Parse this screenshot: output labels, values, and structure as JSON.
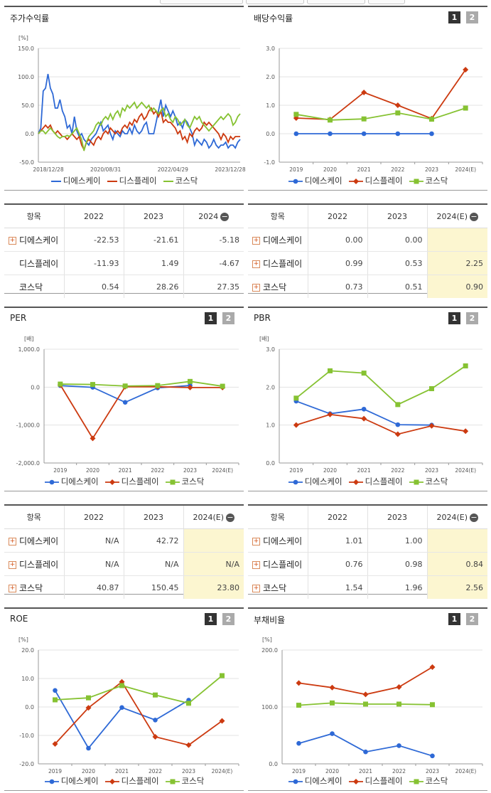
{
  "colors": {
    "dsk": "#2e69d6",
    "display": "#cc3a10",
    "kosdaq": "#86c232",
    "grid": "#e3e3e3",
    "axis": "#999999"
  },
  "series_names": [
    "디에스케이",
    "디스플레이",
    "코스닥"
  ],
  "toggle": {
    "one": "1",
    "two": "2"
  },
  "stock_return": {
    "title": "주가수익률",
    "unit": "[%]",
    "chart_data": {
      "type": "line",
      "ylim": [
        -50,
        150
      ],
      "yticks": [
        "150.0",
        "100.0",
        "50.0",
        "0.0",
        "-50.0"
      ],
      "xticks": [
        "2018/12/28",
        "2020/08/31",
        "2022/04/29",
        "2023/12/28"
      ],
      "x_range": [
        "2018-12-28",
        "2023-12-28"
      ],
      "grid": true,
      "legend": "bottom",
      "series": [
        {
          "name": "디에스케이",
          "values": [
            0,
            10,
            75,
            80,
            105,
            80,
            70,
            45,
            45,
            60,
            40,
            30,
            10,
            15,
            0,
            30,
            5,
            -5,
            0,
            -10,
            -15,
            -20,
            -10,
            -5,
            0,
            10,
            20,
            5,
            10,
            15,
            0,
            -10,
            5,
            0,
            -5,
            5,
            0,
            0,
            10,
            0,
            15,
            5,
            0,
            5,
            15,
            20,
            0,
            0,
            0,
            20,
            40,
            60,
            30,
            50,
            40,
            30,
            40,
            30,
            15,
            20,
            10,
            25,
            20,
            10,
            0,
            -20,
            -10,
            -15,
            -20,
            -10,
            -15,
            -25,
            -20,
            -10,
            -20,
            -25,
            -20,
            -20,
            -15,
            -25,
            -20,
            -20,
            -25,
            -15,
            -10
          ]
        },
        {
          "name": "디스플레이",
          "values": [
            0,
            5,
            10,
            15,
            10,
            15,
            5,
            0,
            5,
            0,
            -5,
            -5,
            -10,
            -5,
            0,
            -5,
            -10,
            -5,
            -20,
            -28,
            -15,
            -10,
            -15,
            -20,
            -10,
            -5,
            -10,
            0,
            5,
            0,
            10,
            5,
            0,
            5,
            0,
            10,
            15,
            10,
            20,
            15,
            25,
            20,
            30,
            35,
            25,
            30,
            40,
            45,
            35,
            40,
            30,
            40,
            20,
            25,
            20,
            20,
            15,
            10,
            0,
            5,
            -10,
            -5,
            -15,
            0,
            -5,
            5,
            10,
            5,
            10,
            20,
            15,
            20,
            15,
            10,
            5,
            0,
            -10,
            0,
            -5,
            -15,
            -5,
            -10,
            -5,
            -5,
            -5
          ]
        },
        {
          "name": "코스닥",
          "values": [
            0,
            5,
            5,
            0,
            5,
            10,
            5,
            0,
            -5,
            -8,
            -5,
            -5,
            -3,
            -5,
            0,
            5,
            10,
            0,
            -10,
            -30,
            -15,
            -5,
            0,
            5,
            15,
            20,
            15,
            25,
            30,
            25,
            35,
            25,
            35,
            40,
            30,
            45,
            40,
            50,
            45,
            50,
            55,
            45,
            50,
            55,
            50,
            45,
            50,
            40,
            45,
            40,
            35,
            40,
            45,
            30,
            35,
            25,
            20,
            30,
            25,
            15,
            20,
            25,
            15,
            10,
            20,
            30,
            25,
            30,
            20,
            15,
            10,
            5,
            10,
            15,
            20,
            25,
            30,
            25,
            30,
            35,
            30,
            15,
            20,
            30,
            35
          ]
        }
      ]
    }
  },
  "dividend": {
    "title": "배당수익률",
    "chart_data": {
      "type": "line",
      "ylim": [
        -1,
        3
      ],
      "yticks": [
        "3.0",
        "2.0",
        "1.0",
        "0.0",
        "-1.0"
      ],
      "categories": [
        "2019",
        "2020",
        "2021",
        "2022",
        "2023",
        "2024(E)"
      ],
      "grid": true,
      "legend": "bottom",
      "series": [
        {
          "name": "디에스케이",
          "values": [
            0.0,
            0.0,
            0.0,
            0.0,
            0.0,
            null
          ]
        },
        {
          "name": "디스플레이",
          "values": [
            0.55,
            0.5,
            1.45,
            1.0,
            0.53,
            2.25
          ]
        },
        {
          "name": "코스닥",
          "values": [
            0.68,
            0.48,
            0.52,
            0.73,
            0.51,
            0.9
          ]
        }
      ]
    }
  },
  "table1": {
    "header": [
      "항목",
      "2022",
      "2023",
      "2024"
    ],
    "rows": [
      {
        "name": "디에스케이",
        "plus": true,
        "vals": [
          "-22.53",
          "-21.61",
          "-5.18"
        ]
      },
      {
        "name": "디스플레이",
        "plus": false,
        "vals": [
          "-11.93",
          "1.49",
          "-4.67"
        ]
      },
      {
        "name": "코스닥",
        "plus": false,
        "vals": [
          "0.54",
          "28.26",
          "27.35"
        ]
      }
    ]
  },
  "table2": {
    "header": [
      "항목",
      "2022",
      "2023",
      "2024(E)"
    ],
    "rows": [
      {
        "name": "디에스케이",
        "plus": true,
        "vals": [
          "0.00",
          "0.00",
          ""
        ]
      },
      {
        "name": "디스플레이",
        "plus": true,
        "vals": [
          "0.99",
          "0.53",
          "2.25"
        ]
      },
      {
        "name": "코스닥",
        "plus": true,
        "vals": [
          "0.73",
          "0.51",
          "0.90"
        ]
      }
    ]
  },
  "per": {
    "title": "PER",
    "unit": "[배]",
    "chart_data": {
      "type": "line",
      "ylim": [
        -2000,
        1000
      ],
      "yticks": [
        "1,000.0",
        "0.0",
        "-1,000.0",
        "-2,000.0"
      ],
      "categories": [
        "2019",
        "2020",
        "2021",
        "2022",
        "2023",
        "2024(E)"
      ],
      "grid": true,
      "legend": "bottom",
      "series": [
        {
          "name": "디에스케이",
          "values": [
            40,
            -5,
            -400,
            -20,
            42.72,
            null
          ]
        },
        {
          "name": "디스플레이",
          "values": [
            60,
            -1350,
            10,
            10,
            -10,
            -10
          ]
        },
        {
          "name": "코스닥",
          "values": [
            80,
            70,
            30,
            40.87,
            150.45,
            23.8
          ]
        }
      ]
    }
  },
  "pbr": {
    "title": "PBR",
    "unit": "[배]",
    "chart_data": {
      "type": "line",
      "ylim": [
        0,
        3
      ],
      "yticks": [
        "3.0",
        "2.0",
        "1.0",
        "0.0"
      ],
      "categories": [
        "2019",
        "2020",
        "2021",
        "2022",
        "2023",
        "2024(E)"
      ],
      "grid": true,
      "legend": "bottom",
      "series": [
        {
          "name": "디에스케이",
          "values": [
            1.63,
            1.3,
            1.42,
            1.01,
            1.0,
            null
          ]
        },
        {
          "name": "디스플레이",
          "values": [
            1.0,
            1.28,
            1.17,
            0.76,
            0.98,
            0.84
          ]
        },
        {
          "name": "코스닥",
          "values": [
            1.71,
            2.43,
            2.37,
            1.54,
            1.96,
            2.56
          ]
        }
      ]
    }
  },
  "table3": {
    "header": [
      "항목",
      "2022",
      "2023",
      "2024(E)"
    ],
    "rows": [
      {
        "name": "디에스케이",
        "plus": true,
        "vals": [
          "N/A",
          "42.72",
          ""
        ]
      },
      {
        "name": "디스플레이",
        "plus": true,
        "vals": [
          "N/A",
          "N/A",
          "N/A"
        ]
      },
      {
        "name": "코스닥",
        "plus": true,
        "vals": [
          "40.87",
          "150.45",
          "23.80"
        ]
      }
    ]
  },
  "table4": {
    "header": [
      "항목",
      "2022",
      "2023",
      "2024(E)"
    ],
    "rows": [
      {
        "name": "디에스케이",
        "plus": true,
        "vals": [
          "1.01",
          "1.00",
          ""
        ]
      },
      {
        "name": "디스플레이",
        "plus": true,
        "vals": [
          "0.76",
          "0.98",
          "0.84"
        ]
      },
      {
        "name": "코스닥",
        "plus": true,
        "vals": [
          "1.54",
          "1.96",
          "2.56"
        ]
      }
    ]
  },
  "roe": {
    "title": "ROE",
    "unit": "[%]",
    "chart_data": {
      "type": "line",
      "ylim": [
        -20,
        20
      ],
      "yticks": [
        "20.0",
        "10.0",
        "0.0",
        "-10.0",
        "-20.0"
      ],
      "categories": [
        "2019",
        "2020",
        "2021",
        "2022",
        "2023",
        "2024(E)"
      ],
      "grid": true,
      "legend": "bottom",
      "series": [
        {
          "name": "디에스케이",
          "values": [
            5.8,
            -14.5,
            -0.2,
            -4.6,
            2.4,
            null
          ]
        },
        {
          "name": "디스플레이",
          "values": [
            -13.0,
            -0.3,
            8.8,
            -10.5,
            -13.4,
            -4.9
          ]
        },
        {
          "name": "코스닥",
          "values": [
            2.5,
            3.2,
            7.5,
            4.2,
            1.3,
            11.0
          ]
        }
      ]
    }
  },
  "debt": {
    "title": "부채비율",
    "unit": "[%]",
    "chart_data": {
      "type": "line",
      "ylim": [
        0,
        200
      ],
      "yticks": [
        "200.0",
        "100.0",
        "0.0"
      ],
      "categories": [
        "2019",
        "2020",
        "2021",
        "2022",
        "2023",
        "2024(E)"
      ],
      "grid": true,
      "legend": "bottom",
      "series": [
        {
          "name": "디에스케이",
          "values": [
            36,
            53,
            21,
            32,
            14,
            null
          ]
        },
        {
          "name": "디스플레이",
          "values": [
            142,
            134,
            122,
            135,
            170,
            null
          ]
        },
        {
          "name": "코스닥",
          "values": [
            103,
            107,
            105,
            105,
            104,
            null
          ]
        }
      ]
    }
  }
}
